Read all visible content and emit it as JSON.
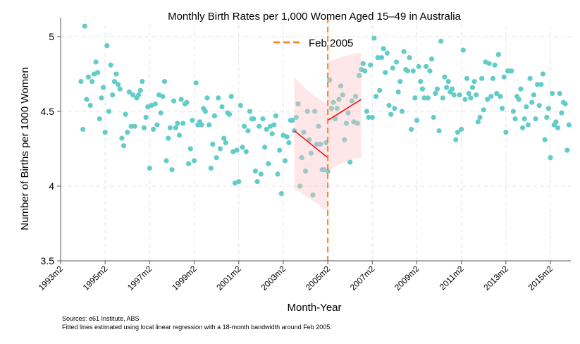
{
  "chart_data": {
    "type": "scatter",
    "title": "Monthly Birth Rates per 1,000 Women Aged 15–49 in Australia",
    "xlabel": "Month-Year",
    "ylabel": "Number of Births per 1000 Women",
    "x_ticks": [
      "1993m2",
      "1995m2",
      "1997m2",
      "1999m2",
      "2001m2",
      "2003m2",
      "2005m2",
      "2007m2",
      "2009m2",
      "2011m2",
      "2013m2",
      "2015m2"
    ],
    "y_ticks": [
      "3.5",
      "4",
      "4.5",
      "5"
    ],
    "ylim": [
      3.5,
      5.08
    ],
    "xlim": [
      "1993m2",
      "2016m1"
    ],
    "grid": true,
    "legend": {
      "position": "top",
      "entries": [
        {
          "label": "Feb 2005",
          "style": "dashed",
          "color": "#ff7f0e"
        }
      ]
    },
    "colors": {
      "points": "#63ccc8",
      "cutoff": "#ff7f0e",
      "fit": "#ff0000",
      "band": "#ffc0c6"
    },
    "series": {
      "x_start": "1994m1",
      "frequency": "monthly",
      "values": [
        4.7,
        4.38,
        5.07,
        4.58,
        4.73,
        4.54,
        4.7,
        4.75,
        4.83,
        4.76,
        4.45,
        4.59,
        4.66,
        4.36,
        4.94,
        4.5,
        4.81,
        4.61,
        4.7,
        4.75,
        4.68,
        4.65,
        4.32,
        4.27,
        4.48,
        4.36,
        4.63,
        4.4,
        4.61,
        4.4,
        4.59,
        4.61,
        4.64,
        4.7,
        4.39,
        4.46,
        4.53,
        4.12,
        4.54,
        4.38,
        4.55,
        4.41,
        4.61,
        4.49,
        4.6,
        4.7,
        4.17,
        4.32,
        4.39,
        4.11,
        4.57,
        4.39,
        4.42,
        4.34,
        4.58,
        4.42,
        4.55,
        4.56,
        4.15,
        4.25,
        4.44,
        4.17,
        4.69,
        4.41,
        4.43,
        4.41,
        4.52,
        4.5,
        4.59,
        4.41,
        4.12,
        4.28,
        4.47,
        4.19,
        4.59,
        4.25,
        4.53,
        4.32,
        4.29,
        4.49,
        4.48,
        4.6,
        4.23,
        4.02,
        4.24,
        4.03,
        4.54,
        4.26,
        4.4,
        4.23,
        4.37,
        4.5,
        4.45,
        4.45,
        4.1,
        4.03,
        4.4,
        4.08,
        4.45,
        4.26,
        4.38,
        4.15,
        4.4,
        4.35,
        4.41,
        4.47,
        4.08,
        4.24,
        3.95,
        4.34,
        4.17,
        4.33,
        4.29,
        4.44,
        4.44,
        4.37,
        4.46,
        4.55,
        4.0,
        4.19,
        4.36,
        4.1,
        4.5,
        4.31,
        4.22,
        3.94,
        4.5,
        4.28,
        4.4,
        4.28,
        4.11,
        4.11,
        4.29,
        4.1,
        4.71,
        4.52,
        4.56,
        4.45,
        4.52,
        4.58,
        4.67,
        4.61,
        4.31,
        4.42,
        4.49,
        4.16,
        4.57,
        4.43,
        4.6,
        4.42,
        4.74,
        4.78,
        4.82,
        4.77,
        4.5,
        4.46,
        4.81,
        4.46,
        4.99,
        4.6,
        4.86,
        4.64,
        4.86,
        4.92,
        4.76,
        4.89,
        4.54,
        4.48,
        4.79,
        4.52,
        4.83,
        4.63,
        4.7,
        4.5,
        4.9,
        4.78,
        4.77,
        4.86,
        4.38,
        4.77,
        4.59,
        4.44,
        4.8,
        4.7,
        4.65,
        4.59,
        4.8,
        4.59,
        4.77,
        4.85,
        4.46,
        4.62,
        4.65,
        4.37,
        4.97,
        4.59,
        4.73,
        4.66,
        4.7,
        4.63,
        4.65,
        4.61,
        4.31,
        4.36,
        4.61,
        4.38,
        4.91,
        4.58,
        4.72,
        4.62,
        4.59,
        4.66,
        4.7,
        4.61,
        4.43,
        4.46,
        4.72,
        4.51,
        4.83,
        4.58,
        4.82,
        4.6,
        4.72,
        4.81,
        4.62,
        4.88,
        4.6,
        4.52,
        4.73,
        4.36,
        4.77,
        4.77,
        4.77,
        4.5,
        4.45,
        4.6,
        4.58,
        4.65,
        4.39,
        4.45,
        4.53,
        4.41,
        4.72,
        4.56,
        4.61,
        4.45,
        4.68,
        4.54,
        4.68,
        4.75,
        4.31,
        4.46,
        4.52,
        4.19,
        4.62,
        4.41,
        4.43,
        4.39,
        4.62,
        4.49,
        4.56,
        4.55,
        4.24,
        4.41
      ]
    },
    "cutoff": "2005m2",
    "fits": [
      {
        "side": "left",
        "x": [
          "2003m8",
          "2005m2"
        ],
        "y": [
          4.37,
          4.19
        ],
        "band": {
          "x": [
            "2003m8",
            "2004m5",
            "2005m2"
          ],
          "upper": [
            4.73,
            4.62,
            4.55
          ],
          "lower": [
            3.98,
            3.91,
            3.83
          ]
        }
      },
      {
        "side": "right",
        "x": [
          "2005m2",
          "2006m8"
        ],
        "y": [
          4.44,
          4.58
        ],
        "band": {
          "x": [
            "2005m2",
            "2005m11",
            "2006m8"
          ],
          "upper": [
            4.83,
            4.87,
            4.89
          ],
          "lower": [
            4.1,
            4.16,
            4.19
          ]
        }
      }
    ],
    "notes": [
      "Sources: e61 Institute, ABS",
      "Fitted lines estimated using local linear regression with a 18-month bandwidth around Feb 2005."
    ]
  }
}
